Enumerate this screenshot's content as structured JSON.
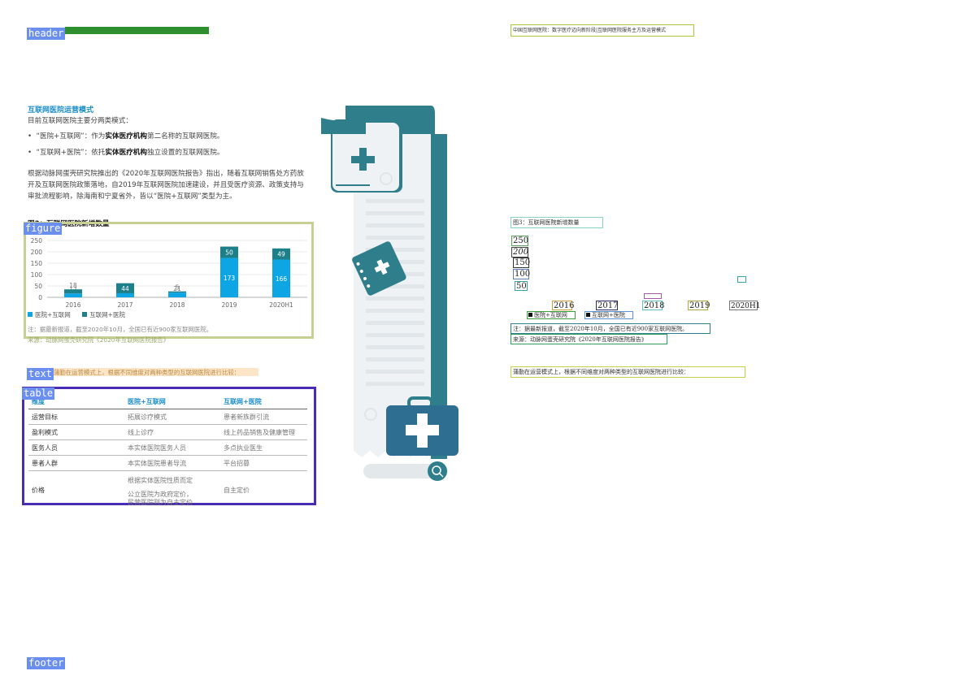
{
  "page": {
    "header_tag": "header",
    "footer_tag": "footer",
    "figure_tag": "figure",
    "text_tag": "text",
    "table_tag": "table"
  },
  "left": {
    "section_title": "互联网医院运营模式",
    "intro": "目前互联网医院主要分两类模式：",
    "bullet1": {
      "prefix": "“医院+互联网”：作为",
      "bold": "实体医疗机构",
      "suffix": "第二名称的互联网医院。"
    },
    "bullet2": {
      "prefix": "“互联网+医院”：依托",
      "bold": "实体医疗机构",
      "suffix": "独立设置的互联网医院。"
    },
    "paragraph": "根据动脉网蛋壳研究院推出的《2020年互联网医院报告》指出，随着互联网销售处方药放开及互联网医院政策落地，自2019年互联网医院加速建设，并且受医疗资源、政策支持与审批流程影响，除海南和宁夏省外，皆以“医院+互联网”类型为主。",
    "figure_title": "图3：互联网医院新增数量",
    "note": "注：据最新报道，截至2020年10月，全国已有近900家互联网医院。",
    "source": "来源：动脉网蛋壳研究院《2020年互联网医院报告》",
    "compare_text": "蒲勤在运营模式上，根据不同维度对两种类型的互联网医院进行比较："
  },
  "chart_data": {
    "type": "bar",
    "stacked": true,
    "categories": [
      "2016",
      "2017",
      "2018",
      "2019",
      "2020H1"
    ],
    "series": [
      {
        "name": "医院+互联网",
        "values": [
          17,
          18,
          21,
          173,
          166
        ],
        "color": "#0ea5e4"
      },
      {
        "name": "互联网+医院",
        "values": [
          18,
          44,
          5,
          50,
          49
        ],
        "color": "#1d7f8a"
      }
    ],
    "yticks": [
      "250",
      "200",
      "150",
      "100",
      "50",
      "0"
    ],
    "ylim": [
      0,
      250
    ],
    "grid": true,
    "legend": "bottom-left"
  },
  "table": {
    "headers": [
      "维度",
      "医院+互联网",
      "互联网+医院"
    ],
    "rows": [
      [
        "运营目标",
        "拓展诊疗模式",
        "患者新族群引流"
      ],
      [
        "盈利模式",
        "线上诊疗",
        "线上药品销售及健康管理"
      ],
      [
        "医务人员",
        "本实体医院医务人员",
        "多点执业医生"
      ],
      [
        "患者人群",
        "本实体医院患者导流",
        "平台招募"
      ]
    ],
    "price_label": "价格",
    "price_col1_a": "根据实体医院性质而定",
    "price_col1_b": "公立医院为政府定价，",
    "price_col1_c": "民营医院则为自主定价",
    "price_col2": "自主定价"
  },
  "right": {
    "header_text": "中国互联网医院：数字医疗迈向新阶段|互联网医院服务主方及运营模式",
    "figure_title": "图3：互联网医院新增数量",
    "yticks": [
      "250",
      "200",
      "150",
      "100",
      "50"
    ],
    "years": [
      "2016",
      "2017",
      "2018",
      "2019",
      "2020H1"
    ],
    "legend1": "医院+互联网",
    "legend2": "互联网+医院",
    "note": "注：据最新报道，截至2020年10月，全国已有近900家互联网医院。",
    "source": "来源：动脉网蛋壳研究院《2020年互联网医院报告》",
    "compare_text": "蒲勤在运营模式上，根据不同维度对两种类型的互联网医院进行比较："
  },
  "colors": {
    "accent": "#1b8ec9",
    "teal": "#2e7e8c",
    "bar_light": "#0ea5e4",
    "bar_dark": "#1d7f8a"
  }
}
